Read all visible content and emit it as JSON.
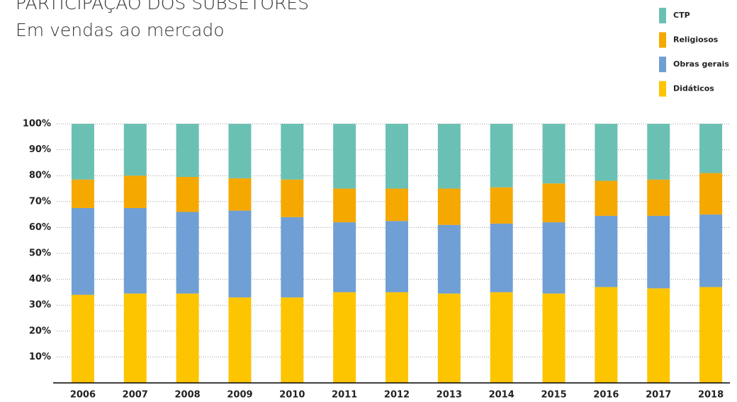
{
  "chart_data": {
    "type": "stacked_bar",
    "title": "PARTICIPAÇÃO DOS SUBSETORES",
    "subtitle": "Em vendas ao mercado",
    "categories": [
      "2006",
      "2007",
      "2008",
      "2009",
      "2010",
      "2011",
      "2012",
      "2013",
      "2014",
      "2015",
      "2016",
      "2017",
      "2018"
    ],
    "series": [
      {
        "name": "Didáticos",
        "color": "#fdc400",
        "values": [
          34,
          34.5,
          34.5,
          33,
          33,
          35,
          35,
          34.5,
          35,
          34.5,
          37,
          36.5,
          37
        ]
      },
      {
        "name": "Obras gerais",
        "color": "#6f9fd4",
        "values": [
          33.5,
          33,
          31.5,
          33.5,
          31,
          27,
          27.5,
          26.5,
          26.5,
          27.5,
          27.5,
          28,
          28
        ]
      },
      {
        "name": "Religiosos",
        "color": "#f5a800",
        "values": [
          11,
          12.5,
          13.5,
          12.5,
          14.5,
          13,
          12.5,
          14,
          14,
          15,
          13.5,
          14,
          16
        ]
      },
      {
        "name": "CTP",
        "color": "#6bc0b4",
        "values": [
          21.5,
          20,
          20.5,
          21,
          21.5,
          25,
          25,
          25,
          24.5,
          23,
          22,
          21.5,
          19
        ]
      }
    ],
    "ylim": [
      0,
      100
    ],
    "yticks": [
      {
        "value": 10,
        "label": "10%"
      },
      {
        "value": 20,
        "label": "20%"
      },
      {
        "value": 30,
        "label": "30%"
      },
      {
        "value": 40,
        "label": "40%"
      },
      {
        "value": 50,
        "label": "50%"
      },
      {
        "value": 60,
        "label": "60%"
      },
      {
        "value": 70,
        "label": "70%"
      },
      {
        "value": 80,
        "label": "80%"
      },
      {
        "value": 90,
        "label": "90%"
      },
      {
        "value": 100,
        "label": "100%"
      }
    ],
    "grid": true,
    "legend": "top-right"
  }
}
